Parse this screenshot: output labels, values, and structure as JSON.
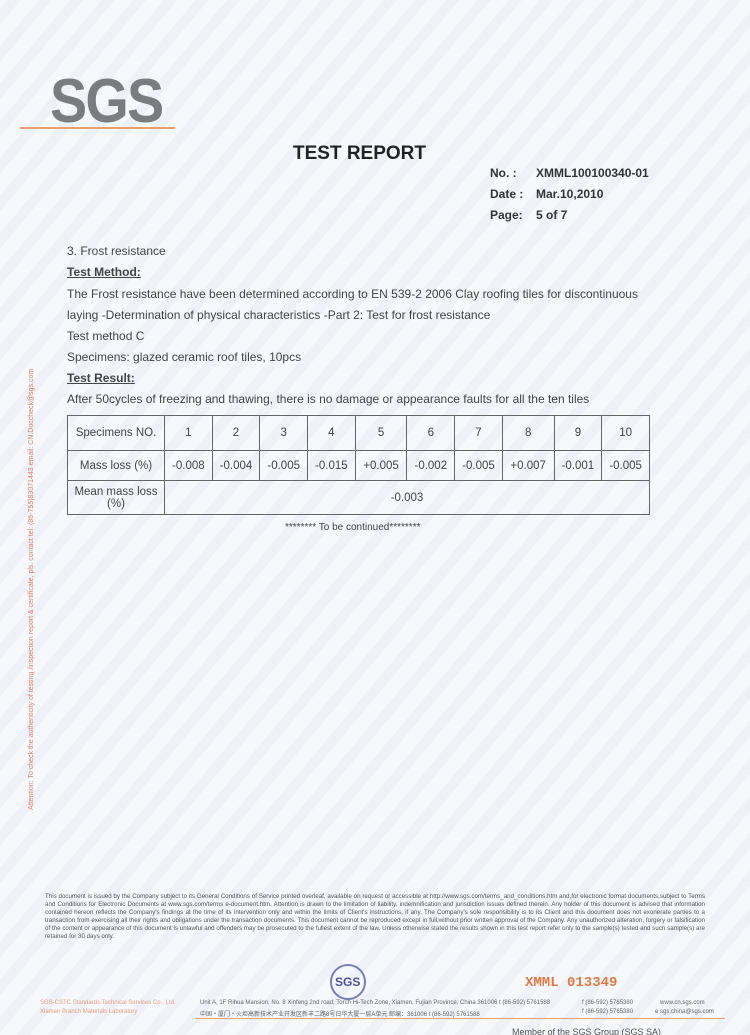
{
  "header": {
    "logo": "SGS",
    "title": "TEST REPORT",
    "no_label": "No. :",
    "no": "XMML100100340-01",
    "date_label": "Date :",
    "date": "Mar.10,2010",
    "page_label": "Page:",
    "page": "5 of 7"
  },
  "section": {
    "heading": "3. Frost resistance",
    "method_label": "Test Method:",
    "method_line1": "The Frost resistance have been determined according to EN 539-2 2006 Clay roofing tiles for discontinuous",
    "method_line2": "laying -Determination of physical characteristics -Part 2: Test for frost resistance",
    "method_c": "Test method C",
    "specimens": "Specimens: glazed ceramic roof tiles, 10pcs",
    "result_label": "Test Result:",
    "result": "After 50cycles of freezing and thawing, there is no damage or appearance faults for all the ten tiles"
  },
  "table": {
    "row_labels": [
      "Specimens NO.",
      "Mass loss (%)",
      "Mean mass loss (%)"
    ],
    "specimens": [
      "1",
      "2",
      "3",
      "4",
      "5",
      "6",
      "7",
      "8",
      "9",
      "10"
    ],
    "mass_loss": [
      "-0.008",
      "-0.004",
      "-0.005",
      "-0.015",
      "+0.005",
      "-0.002",
      "-0.005",
      "+0.007",
      "-0.001",
      "-0.005"
    ],
    "mean": "-0.003"
  },
  "continued": "******** To be continued********",
  "side_note": "Attention: To check the authenticity of testing /inspection report & certificate, pls. contact tel: (86-755)83071443 email: CN.Doccheck@sgs.com",
  "footer": {
    "disclaimer": "This document is issued by the Company subject to its General Conditions of Service printed overleaf, available on request or accessible at http://www.sgs.com/terms_and_conditions.htm and,for electronic format documents,subject to Terms and Conditions for Electronic Documents at www.sgs.com/terms e-document.htm. Attention is drawn to the limitation of liability, indemnification and jurisdiction issues defined therein. Any holder of this document is advised that information contained hereon reflects the Company's findings at the time of its intervention only and within the limits of Client's instructions, if any. The Company's sole responsibility is to its Client and this document does not exonerate parties to a transaction from exercising all their rights and obligations under the transaction documents. This document cannot be reproduced except in full,without prior written approval of the Company. Any unauthorized alteration, forgery or falsification of the content or appearance of this document is unlawful and offenders may be prosecuted to the fullest extent of the law. Unless otherwise stated the results shown in this test report refer only to the sample(s) tested and such sample(s) are retained for 30 days only.",
    "stamp": "SGS",
    "serial": "XMML 013349",
    "company1": "SGS-CSTC Standards Technical Services Co., Ltd.",
    "company2": "Xiamen Branch Materials Laboratory",
    "address_en": "Unit A, 1F Rihua Mansion, No. 8 Xinfeng 2nd road, Torch Hi-Tech Zone, Xiamen, Fujian Province, China 361006   t (86-592) 5761588",
    "address_cn": "中国・厦门・火炬高新技术产业开发区新丰二路8号日华大厦一层A单元  邮编：361006   t (86-592) 5761588",
    "fax1": "f (86-592) 5765380",
    "web": "www.cn.sgs.com",
    "fax2": "f (86-592) 5765380",
    "email": "e sgs.china@sgs.com",
    "member": "Member of the SGS Group (SGS SA)"
  }
}
